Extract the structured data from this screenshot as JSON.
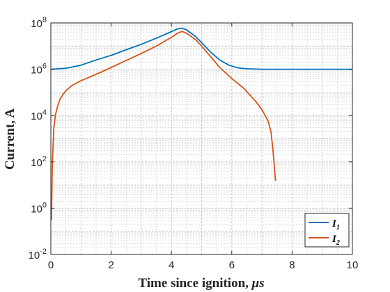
{
  "chart_data": {
    "type": "line",
    "title": "",
    "xlabel": "Time since ignition, ",
    "xlabel_unit": "μs",
    "ylabel": "Current, A",
    "xlim": [
      0,
      10
    ],
    "ylim_log10": [
      -2,
      8
    ],
    "yscale": "log",
    "grid": "on (major and minor)",
    "legend_position": "bottom-right",
    "x_ticks": [
      "0",
      "2",
      "4",
      "6",
      "8",
      "10"
    ],
    "y_ticks": [
      {
        "base": "10",
        "exp": "-2"
      },
      {
        "base": "10",
        "exp": "0"
      },
      {
        "base": "10",
        "exp": "2"
      },
      {
        "base": "10",
        "exp": "4"
      },
      {
        "base": "10",
        "exp": "6"
      },
      {
        "base": "10",
        "exp": "8"
      }
    ],
    "series": [
      {
        "name": "I",
        "subscript": "1",
        "color": "#0072BD",
        "x": [
          0,
          0.5,
          1.0,
          1.5,
          2.0,
          2.5,
          3.0,
          3.5,
          4.0,
          4.2,
          4.35,
          4.5,
          4.8,
          5.0,
          5.3,
          5.6,
          5.9,
          6.2,
          6.5,
          7.0,
          7.5,
          8.0,
          10.0
        ],
        "y": [
          1000000.0,
          1100000.0,
          1500000.0,
          2500000.0,
          4000000.0,
          7000000.0,
          12000000.0,
          22000000.0,
          42000000.0,
          55000000.0,
          60000000.0,
          50000000.0,
          26000000.0,
          14000000.0,
          5500000.0,
          2500000.0,
          1500000.0,
          1150000.0,
          1050000.0,
          1000000.0,
          1000000.0,
          1000000.0,
          1000000.0
        ]
      },
      {
        "name": "I",
        "subscript": "2",
        "color": "#D95319",
        "x": [
          0.02,
          0.05,
          0.1,
          0.15,
          0.2,
          0.3,
          0.4,
          0.5,
          0.7,
          1.0,
          1.5,
          2.0,
          2.5,
          3.0,
          3.5,
          4.0,
          4.2,
          4.35,
          4.5,
          4.8,
          5.0,
          5.3,
          5.6,
          6.0,
          6.4,
          6.8,
          7.0,
          7.2,
          7.3,
          7.35,
          7.4,
          7.43,
          7.45
        ],
        "y": [
          0.3,
          100,
          3000,
          10000.0,
          20000.0,
          50000.0,
          80000.0,
          120000.0,
          200000.0,
          320000.0,
          600000.0,
          1200000.0,
          2400000.0,
          4800000.0,
          10000000.0,
          24000000.0,
          36000000.0,
          43000000.0,
          36000000.0,
          19000000.0,
          10000000.0,
          3500000.0,
          1200000.0,
          400000.0,
          150000.0,
          40000.0,
          18000.0,
          6000,
          2000,
          500,
          100,
          30,
          15
        ]
      }
    ]
  }
}
